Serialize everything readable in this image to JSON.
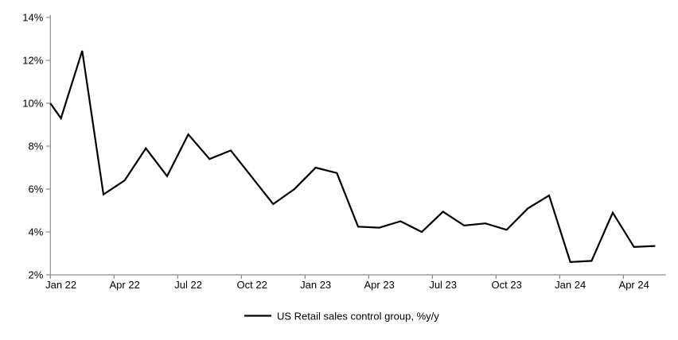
{
  "chart_data": {
    "type": "line",
    "title": "",
    "grid": false,
    "legend_position": "bottom-center",
    "background_color": "#ffffff",
    "axis_color": "#8c8c8c",
    "text_color": "#000000",
    "ylim": [
      2,
      14
    ],
    "y_tick_step": 2,
    "y_tick_labels_top_down": [
      "14%",
      "12%",
      "10%",
      "8%",
      "6%",
      "4%",
      "2%"
    ],
    "x": [
      "Jan 22",
      "Feb 22",
      "Mar 22",
      "Apr 22",
      "May 22",
      "Jun 22",
      "Jul 22",
      "Aug 22",
      "Sep 22",
      "Oct 22",
      "Nov 22",
      "Dec 22",
      "Jan 23",
      "Feb 23",
      "Mar 23",
      "Apr 23",
      "May 23",
      "Jun 23",
      "Jul 23",
      "Aug 23",
      "Sep 23",
      "Oct 23",
      "Nov 23",
      "Dec 23",
      "Jan 24",
      "Feb 24",
      "Mar 24",
      "Apr 24",
      "May 24"
    ],
    "x_tick_labels": [
      "Jan 22",
      "Apr 22",
      "Jul 22",
      "Oct 22",
      "Jan 23",
      "Apr 23",
      "Jul 23",
      "Oct 23",
      "Jan 24",
      "Apr 24"
    ],
    "x_tick_interval_months": 3,
    "series": [
      {
        "name": "US Retail sales control group, %y/y",
        "color": "#000000",
        "values": [
          9.3,
          12.45,
          5.75,
          6.4,
          7.9,
          6.6,
          8.55,
          7.4,
          7.8,
          6.55,
          5.3,
          6.0,
          7.0,
          6.75,
          4.25,
          4.2,
          4.5,
          4.0,
          4.95,
          4.3,
          4.4,
          4.1,
          5.1,
          5.7,
          2.6,
          2.65,
          4.9,
          3.3,
          3.35
        ],
        "line_enters_left_edge_at": 10.0
      }
    ]
  }
}
